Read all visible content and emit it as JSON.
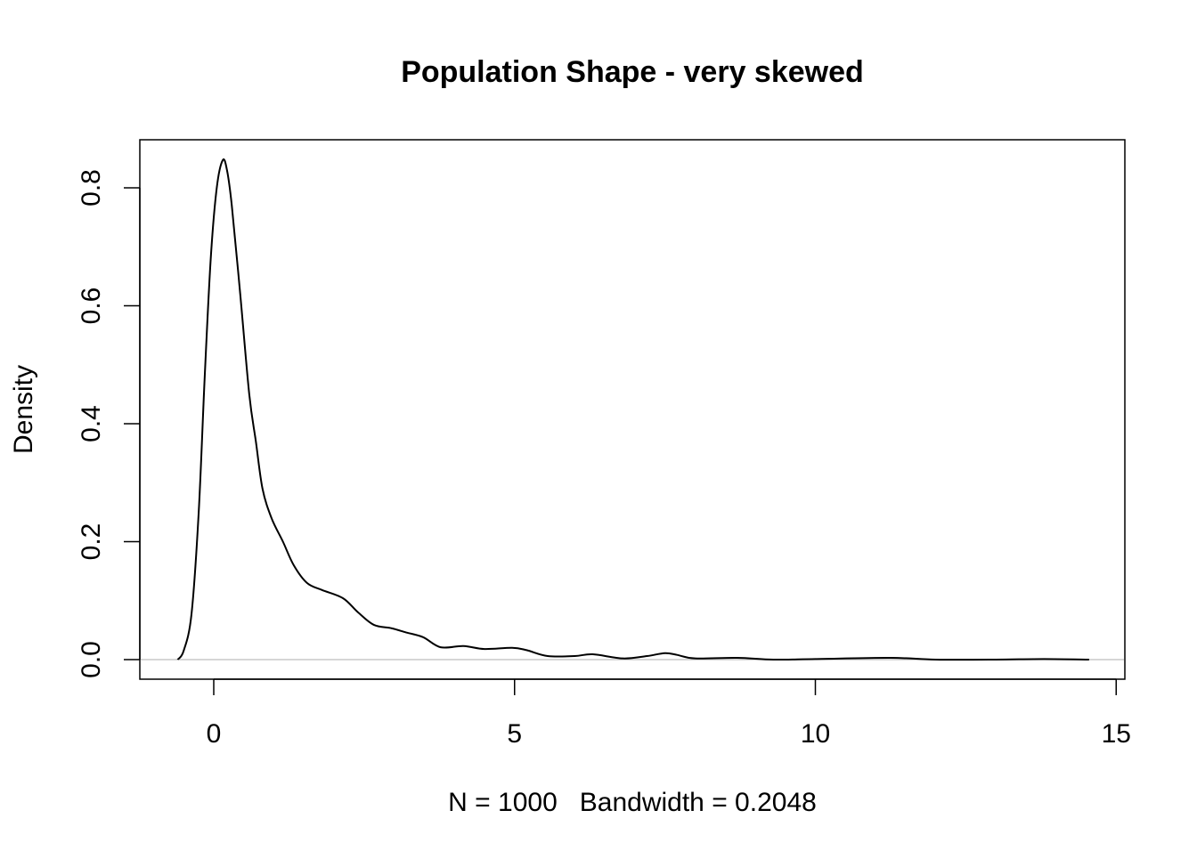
{
  "chart_data": {
    "type": "line",
    "title": "Population Shape - very skewed",
    "xlabel": "N = 1000   Bandwidth = 0.2048",
    "ylabel": "Density",
    "xlim": [
      -1.2,
      15.1
    ],
    "ylim": [
      -0.033,
      0.88
    ],
    "xticks": [
      0,
      5,
      10,
      15
    ],
    "xtick_labels": [
      "0",
      "5",
      "10",
      "15"
    ],
    "yticks": [
      0.0,
      0.2,
      0.4,
      0.6,
      0.8
    ],
    "ytick_labels": [
      "0.0",
      "0.2",
      "0.4",
      "0.6",
      "0.8"
    ],
    "grid": false,
    "baseline": 0,
    "baseline_color": "#bebebe",
    "line_color": "#000000",
    "series": [
      {
        "name": "density",
        "x": [
          -0.6,
          -0.5,
          -0.37,
          -0.25,
          -0.15,
          -0.05,
          0.05,
          0.15,
          0.22,
          0.3,
          0.44,
          0.59,
          0.7,
          0.81,
          0.96,
          1.15,
          1.33,
          1.55,
          1.8,
          2.15,
          2.4,
          2.66,
          2.96,
          3.2,
          3.48,
          3.77,
          4.15,
          4.5,
          4.96,
          5.2,
          5.55,
          6.0,
          6.3,
          6.8,
          7.2,
          7.5,
          7.7,
          8.0,
          8.7,
          9.3,
          10.0,
          11.25,
          12.0,
          13.0,
          13.8,
          14.55
        ],
        "y": [
          0.0,
          0.015,
          0.077,
          0.25,
          0.48,
          0.68,
          0.8,
          0.847,
          0.83,
          0.77,
          0.62,
          0.45,
          0.37,
          0.29,
          0.24,
          0.2,
          0.16,
          0.13,
          0.118,
          0.104,
          0.08,
          0.059,
          0.053,
          0.046,
          0.038,
          0.021,
          0.023,
          0.018,
          0.02,
          0.016,
          0.006,
          0.006,
          0.009,
          0.002,
          0.006,
          0.011,
          0.008,
          0.002,
          0.003,
          0.0,
          0.001,
          0.003,
          0.0,
          0.0,
          0.001,
          0.0
        ]
      }
    ]
  }
}
